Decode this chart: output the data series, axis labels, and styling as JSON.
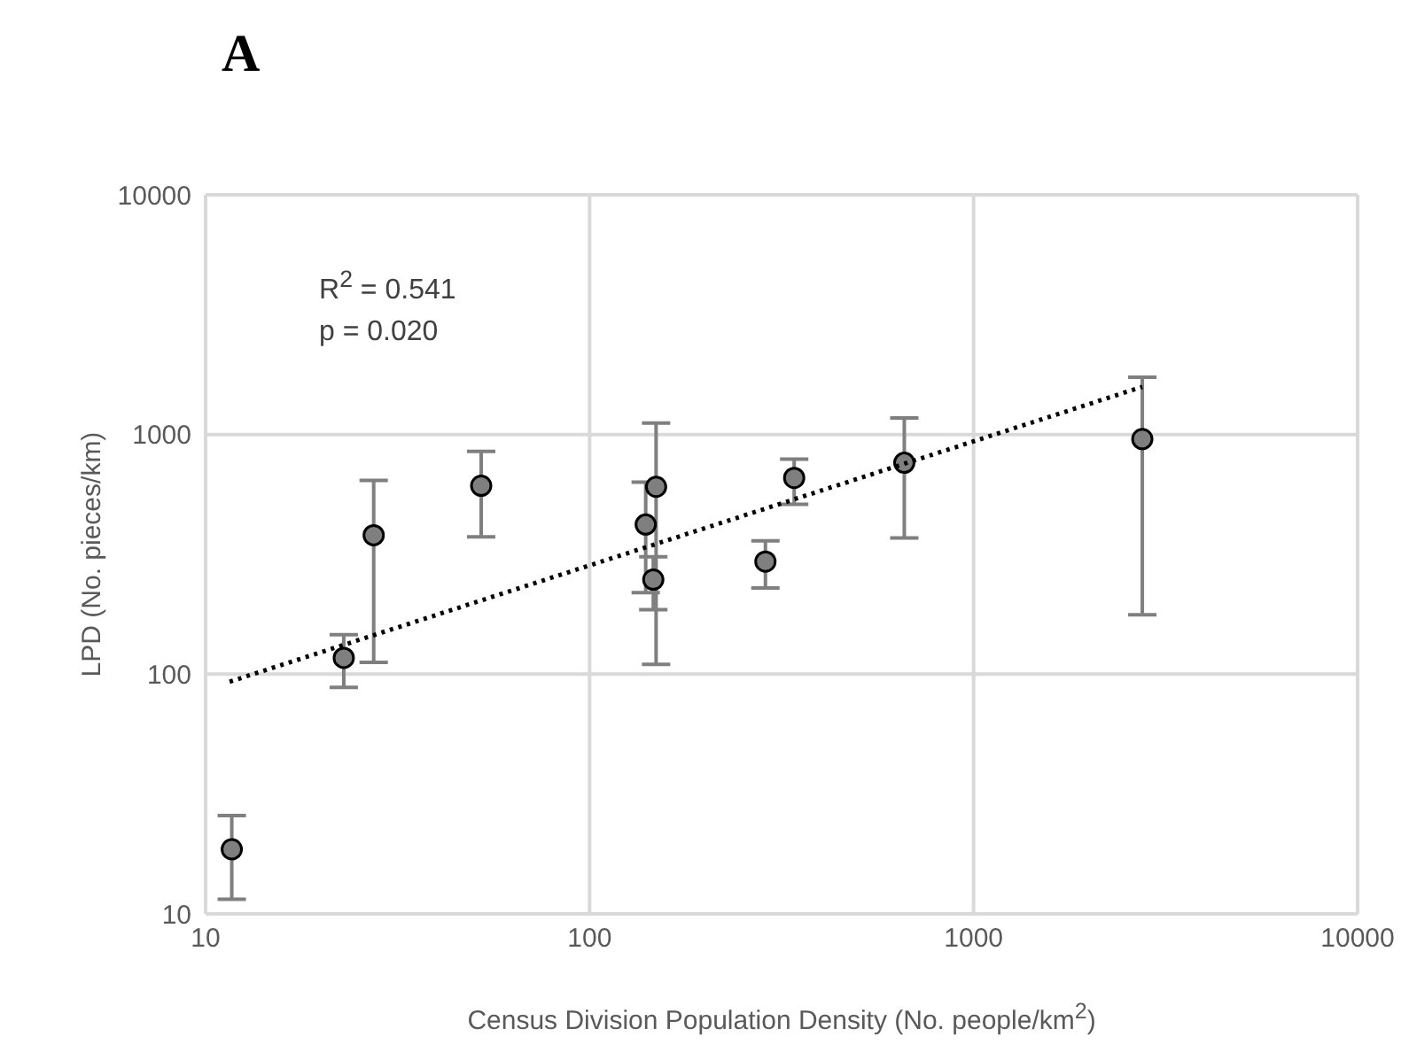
{
  "chart_data": {
    "type": "scatter",
    "title": "A",
    "xlabel": "Census Division Population Density (No. people/km$^{2}$)",
    "ylabel": "LPD (No. pieces/km)",
    "annotations": [
      "R$^{2}$ = 0.541",
      "p = 0.020"
    ],
    "log": "xy",
    "grid": true,
    "legend": false,
    "marker": "circle",
    "xlim": [
      10,
      10000
    ],
    "xticks": [
      10,
      100,
      1000,
      10000
    ],
    "ylim": [
      10,
      10000
    ],
    "yticks": [
      10,
      100,
      1000,
      10000
    ],
    "series": [
      {
        "type": "scatter",
        "color": "#7f7f7f",
        "x": [
          11.7,
          22.9,
          27.4,
          52.2,
          140,
          149,
          146.5,
          287,
          341,
          660,
          2750
        ],
        "values": [
          18.6,
          117,
          380,
          611,
          421,
          605,
          248,
          295,
          659,
          762,
          957
        ],
        "errors": [
          [
            11.5,
            25.7
          ],
          [
            88,
            146
          ],
          [
            112,
            644
          ],
          [
            374,
            850
          ],
          [
            219,
            633
          ],
          [
            110,
            1115
          ],
          [
            186,
            309
          ],
          [
            229,
            360
          ],
          [
            511,
            789
          ],
          [
            370,
            1172
          ],
          [
            177,
            1733
          ]
        ]
      },
      {
        "type": "line",
        "color": "#000000",
        "line_style": "dotted",
        "marker": "none",
        "x": [
          11.55,
          2750
        ],
        "values": [
          93,
          1581
        ]
      }
    ]
  }
}
